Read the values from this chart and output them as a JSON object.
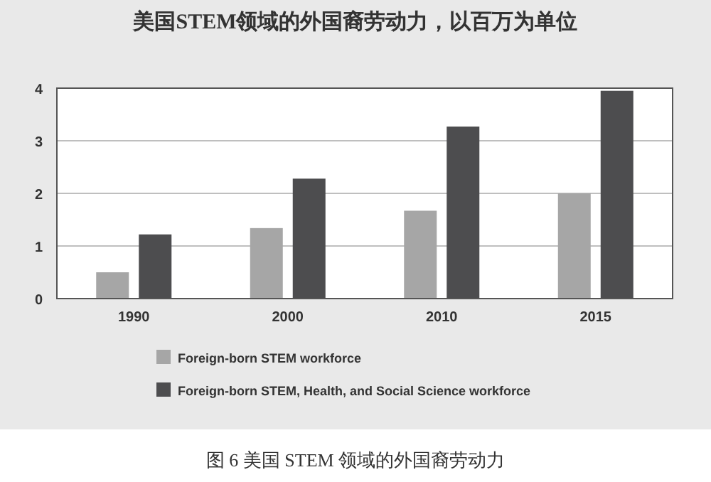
{
  "chart_data": {
    "type": "bar",
    "title": "美国STEM领域的外国裔劳动力，以百万为单位",
    "categories": [
      "1990",
      "2000",
      "2010",
      "2015"
    ],
    "series": [
      {
        "name": "Foreign-born STEM workforce",
        "color": "#a6a6a6",
        "values": [
          0.5,
          1.34,
          1.67,
          2.0
        ]
      },
      {
        "name": "Foreign-born STEM, Health, and Social Science workforce",
        "color": "#4d4d4f",
        "values": [
          1.22,
          2.28,
          3.27,
          3.95
        ]
      }
    ],
    "ylim": [
      0,
      4
    ],
    "yticks": [
      0,
      1,
      2,
      3,
      4
    ],
    "grid": "y",
    "legend": "bottom",
    "annotations": [
      "图 6  美国 STEM 领域的外国裔劳动力"
    ]
  }
}
